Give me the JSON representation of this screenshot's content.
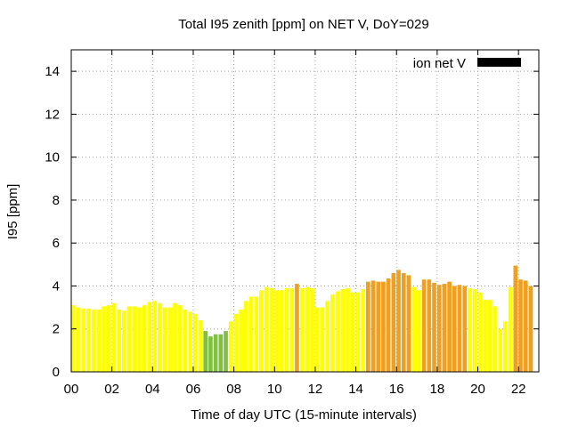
{
  "chart_data": {
    "type": "bar",
    "title": "Total I95 zenith [ppm] on NET V, DoY=029",
    "xlabel": "Time of day UTC (15-minute intervals)",
    "ylabel": "I95 [ppm]",
    "xlim": [
      0,
      23
    ],
    "ylim": [
      0,
      15
    ],
    "x_ticks": [
      0,
      2,
      4,
      6,
      8,
      10,
      12,
      14,
      16,
      18,
      20,
      22
    ],
    "x_tick_labels": [
      "00",
      "02",
      "04",
      "06",
      "08",
      "10",
      "12",
      "14",
      "16",
      "18",
      "20",
      "22"
    ],
    "y_ticks": [
      0,
      2,
      4,
      6,
      8,
      10,
      12,
      14
    ],
    "y_tick_labels": [
      "0",
      "2",
      "4",
      "6",
      "8",
      "10",
      "12",
      "14"
    ],
    "grid": true,
    "interval_hours": 0.25,
    "legend": {
      "label": "ion net V",
      "placement": "top-right",
      "color": "#000000"
    },
    "colors": {
      "green": "#80c040",
      "yellow": "#ffff00",
      "orange": "#f0a020"
    },
    "series": [
      {
        "name": "ion net V",
        "values": [
          3.1,
          3.0,
          2.95,
          2.95,
          2.9,
          2.9,
          3.05,
          3.1,
          3.2,
          2.9,
          2.85,
          3.05,
          3.05,
          3.0,
          3.1,
          3.25,
          3.3,
          3.2,
          3.0,
          3.0,
          3.2,
          3.1,
          2.9,
          2.8,
          2.7,
          2.4,
          1.9,
          1.65,
          1.75,
          1.75,
          1.9,
          2.35,
          2.7,
          2.9,
          3.3,
          3.5,
          3.5,
          3.8,
          3.95,
          3.9,
          3.8,
          3.8,
          3.9,
          3.9,
          4.1,
          3.9,
          3.95,
          3.9,
          3.0,
          3.0,
          3.3,
          3.6,
          3.75,
          3.85,
          3.9,
          3.7,
          3.7,
          3.85,
          4.2,
          4.25,
          4.2,
          4.2,
          4.35,
          4.6,
          4.75,
          4.6,
          4.5,
          3.95,
          3.8,
          4.3,
          4.3,
          4.15,
          4.05,
          4.1,
          4.2,
          4.0,
          4.05,
          4.0,
          3.9,
          3.85,
          3.7,
          3.35,
          3.35,
          3.05,
          2.0,
          2.35,
          3.95,
          4.95,
          4.3,
          4.25,
          4.0
        ],
        "levels": [
          "yellow",
          "yellow",
          "yellow",
          "yellow",
          "yellow",
          "yellow",
          "yellow",
          "yellow",
          "yellow",
          "yellow",
          "yellow",
          "yellow",
          "yellow",
          "yellow",
          "yellow",
          "yellow",
          "yellow",
          "yellow",
          "yellow",
          "yellow",
          "yellow",
          "yellow",
          "yellow",
          "yellow",
          "yellow",
          "yellow",
          "green",
          "green",
          "green",
          "green",
          "green",
          "yellow",
          "yellow",
          "yellow",
          "yellow",
          "yellow",
          "yellow",
          "yellow",
          "yellow",
          "yellow",
          "yellow",
          "yellow",
          "yellow",
          "yellow",
          "orange",
          "yellow",
          "yellow",
          "yellow",
          "yellow",
          "yellow",
          "yellow",
          "yellow",
          "yellow",
          "yellow",
          "yellow",
          "yellow",
          "yellow",
          "yellow",
          "orange",
          "orange",
          "orange",
          "orange",
          "orange",
          "orange",
          "orange",
          "orange",
          "orange",
          "yellow",
          "yellow",
          "orange",
          "orange",
          "orange",
          "orange",
          "orange",
          "orange",
          "orange",
          "orange",
          "orange",
          "yellow",
          "yellow",
          "yellow",
          "yellow",
          "yellow",
          "yellow",
          "yellow",
          "yellow",
          "yellow",
          "orange",
          "orange",
          "orange",
          "orange"
        ]
      }
    ]
  }
}
